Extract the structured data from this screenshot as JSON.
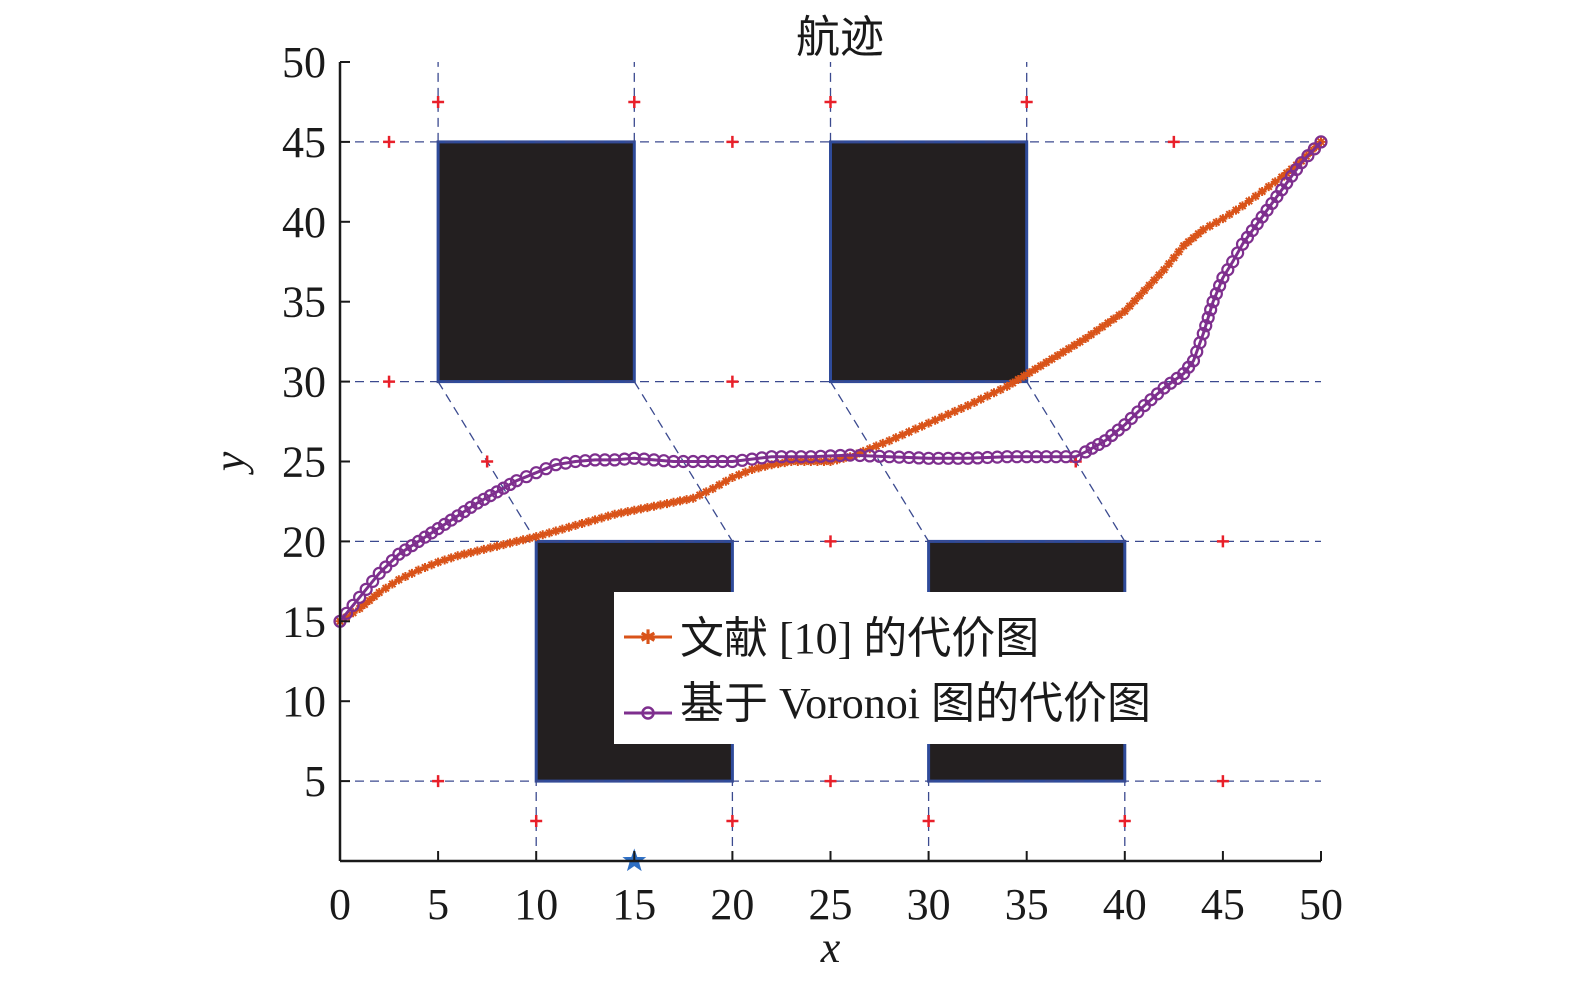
{
  "chart_data": {
    "type": "line",
    "title": "航迹",
    "xlabel": "x",
    "ylabel": "y",
    "xlim": [
      0,
      50
    ],
    "ylim": [
      0,
      50
    ],
    "xticks": [
      "0",
      "5",
      "10",
      "15",
      "20",
      "25",
      "30",
      "35",
      "40",
      "45",
      "50"
    ],
    "yticks": [
      "5",
      "10",
      "15",
      "20",
      "25",
      "30",
      "35",
      "40",
      "45",
      "50"
    ],
    "grid": "dashed Voronoi edges",
    "legend_position": "inside-lower-center",
    "colors": {
      "series1": "#d95319",
      "series2": "#7e2f8e",
      "obstacle_fill": "#231f20",
      "obstacle_edge": "#2f4b9a",
      "voronoi_edge": "#3b4a8f",
      "node": "#e8202a",
      "start": "#2e6fc4"
    },
    "obstacles": [
      {
        "x": [
          5,
          15
        ],
        "y": [
          30,
          45
        ]
      },
      {
        "x": [
          25,
          35
        ],
        "y": [
          30,
          45
        ]
      },
      {
        "x": [
          10,
          20
        ],
        "y": [
          5,
          20
        ]
      },
      {
        "x": [
          30,
          40
        ],
        "y": [
          5,
          20
        ]
      }
    ],
    "voronoi_edges": [
      [
        [
          0,
          45
        ],
        [
          50,
          45
        ]
      ],
      [
        [
          0,
          30
        ],
        [
          50,
          30
        ]
      ],
      [
        [
          0,
          20
        ],
        [
          50,
          20
        ]
      ],
      [
        [
          0,
          5
        ],
        [
          50,
          5
        ]
      ],
      [
        [
          5,
          45
        ],
        [
          5,
          50
        ]
      ],
      [
        [
          15,
          45
        ],
        [
          15,
          50
        ]
      ],
      [
        [
          25,
          45
        ],
        [
          25,
          50
        ]
      ],
      [
        [
          35,
          45
        ],
        [
          35,
          50
        ]
      ],
      [
        [
          10,
          0
        ],
        [
          10,
          5
        ]
      ],
      [
        [
          20,
          0
        ],
        [
          20,
          5
        ]
      ],
      [
        [
          30,
          0
        ],
        [
          30,
          5
        ]
      ],
      [
        [
          40,
          0
        ],
        [
          40,
          5
        ]
      ],
      [
        [
          5,
          30
        ],
        [
          10,
          20
        ]
      ],
      [
        [
          15,
          30
        ],
        [
          20,
          20
        ]
      ],
      [
        [
          25,
          30
        ],
        [
          30,
          20
        ]
      ],
      [
        [
          35,
          30
        ],
        [
          40,
          20
        ]
      ]
    ],
    "voronoi_nodes": [
      [
        5,
        47.5
      ],
      [
        15,
        47.5
      ],
      [
        25,
        47.5
      ],
      [
        35,
        47.5
      ],
      [
        2.5,
        45
      ],
      [
        20,
        45
      ],
      [
        42.5,
        45
      ],
      [
        2.5,
        30
      ],
      [
        20,
        30
      ],
      [
        7.5,
        25
      ],
      [
        37.5,
        25
      ],
      [
        25,
        20
      ],
      [
        45,
        20
      ],
      [
        5,
        5
      ],
      [
        25,
        5
      ],
      [
        45,
        5
      ],
      [
        10,
        2.5
      ],
      [
        20,
        2.5
      ],
      [
        30,
        2.5
      ],
      [
        40,
        2.5
      ]
    ],
    "start_point": [
      15,
      0
    ],
    "series": [
      {
        "name": "文献 [10] 的代价图",
        "marker": "asterisk",
        "x": [
          0,
          1,
          2,
          3,
          4,
          5,
          6,
          8,
          10,
          12,
          14,
          16,
          18,
          19,
          20,
          21,
          22,
          23,
          24,
          25,
          26,
          27,
          28,
          30,
          32,
          34,
          36,
          38,
          40,
          41,
          42,
          43,
          44,
          45,
          46,
          47,
          48,
          49,
          50
        ],
        "y": [
          15,
          15.8,
          16.8,
          17.6,
          18.2,
          18.7,
          19.1,
          19.7,
          20.3,
          21,
          21.7,
          22.2,
          22.7,
          23.3,
          24,
          24.5,
          24.8,
          25,
          25,
          25,
          25.3,
          25.8,
          26.3,
          27.4,
          28.5,
          29.7,
          31.2,
          32.7,
          34.4,
          35.7,
          37,
          38.5,
          39.5,
          40.2,
          41,
          41.9,
          42.8,
          43.8,
          45
        ]
      },
      {
        "name": "基于 Voronoi 图的代价图",
        "marker": "circle",
        "x": [
          0,
          1,
          2,
          3,
          4,
          5,
          6,
          7,
          8,
          9,
          10,
          11,
          12,
          13,
          14,
          15,
          16,
          17,
          18,
          20,
          22,
          24,
          26,
          28,
          30,
          32,
          34,
          36,
          37.5,
          38,
          39,
          40,
          41,
          42,
          43,
          43.5,
          44,
          44.5,
          45,
          45.5,
          46,
          47,
          48,
          49,
          50
        ],
        "y": [
          15,
          16.5,
          18,
          19.2,
          20,
          20.8,
          21.6,
          22.4,
          23.1,
          23.8,
          24.3,
          24.8,
          25,
          25.1,
          25.1,
          25.2,
          25.1,
          25,
          25,
          25,
          25.3,
          25.3,
          25.4,
          25.3,
          25.2,
          25.2,
          25.3,
          25.3,
          25.3,
          25.6,
          26.3,
          27.3,
          28.5,
          29.6,
          30.5,
          31.3,
          33,
          35,
          36.5,
          37.5,
          38.6,
          40.3,
          42,
          43.7,
          45
        ]
      }
    ]
  }
}
